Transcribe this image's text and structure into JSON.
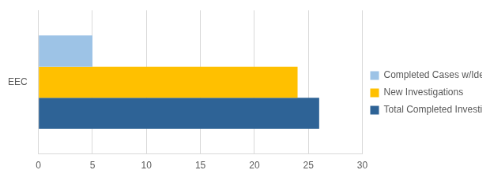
{
  "chart_data": {
    "type": "bar",
    "orientation": "horizontal",
    "categories": [
      "EEC"
    ],
    "series": [
      {
        "name": "Completed Cases w/Identified Fraud",
        "color": "#9DC3E6",
        "values": [
          5
        ]
      },
      {
        "name": "New Investigations",
        "color": "#FFC000",
        "values": [
          24
        ]
      },
      {
        "name": "Total Completed Investigations",
        "color": "#2E6396",
        "values": [
          26
        ]
      }
    ],
    "xlim": [
      0,
      30
    ],
    "xticks": [
      0,
      5,
      10,
      15,
      20,
      25,
      30
    ],
    "grid": true,
    "legend": "right"
  }
}
